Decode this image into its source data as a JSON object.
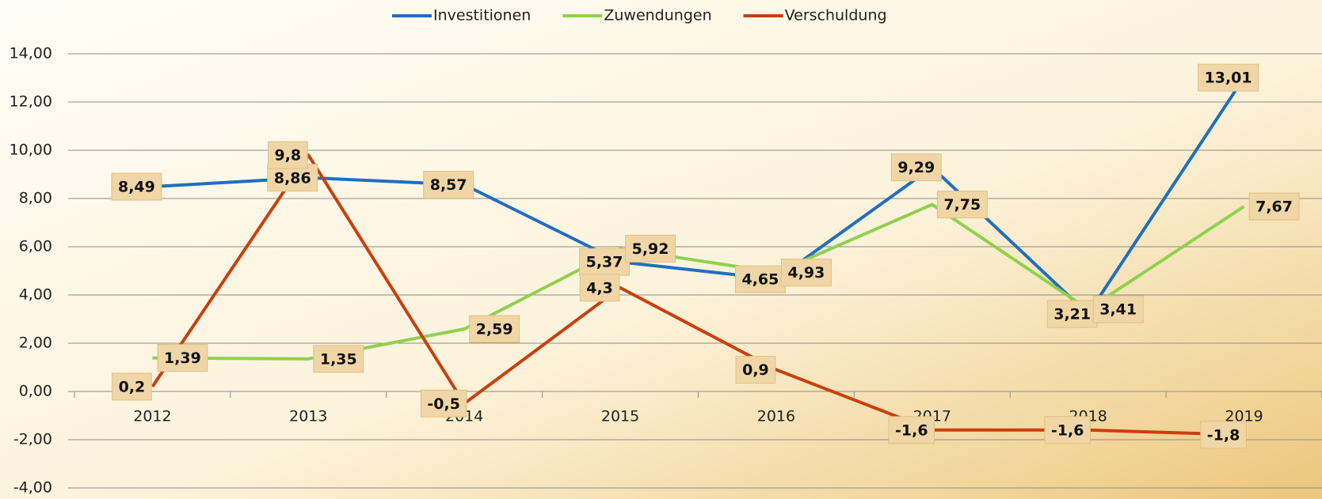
{
  "chart_data": {
    "type": "line",
    "categories": [
      "2012",
      "2013",
      "2014",
      "2015",
      "2016",
      "2017",
      "2018",
      "2019"
    ],
    "series": [
      {
        "name": "Investitionen",
        "color": "#1f6fbf",
        "values": [
          8.49,
          8.86,
          8.57,
          5.37,
          4.65,
          9.29,
          3.21,
          13.01
        ],
        "value_labels": [
          "8,49",
          "8,86",
          "8,57",
          "5,37",
          "4,65",
          "9,29",
          "3,21",
          "13,01"
        ]
      },
      {
        "name": "Zuwendungen",
        "color": "#8fd14f",
        "values": [
          1.39,
          1.35,
          2.59,
          5.92,
          4.93,
          7.75,
          3.41,
          7.67
        ],
        "value_labels": [
          "1,39",
          "1,35",
          "2,59",
          "5,92",
          "4,93",
          "7,75",
          "3,41",
          "7,67"
        ]
      },
      {
        "name": "Verschuldung",
        "color": "#c8400e",
        "values": [
          0.2,
          9.8,
          -0.5,
          4.3,
          0.9,
          -1.6,
          -1.6,
          -1.8
        ],
        "value_labels": [
          "0,2",
          "9,8",
          "-0,5",
          "4,3",
          "0,9",
          "-1,6",
          "-1,6",
          "-1,8"
        ]
      }
    ],
    "ylim": [
      -4,
      14
    ],
    "yticks": [
      {
        "value": -4,
        "label": "-4,00"
      },
      {
        "value": -2,
        "label": "-2,00"
      },
      {
        "value": 0,
        "label": "0,00"
      },
      {
        "value": 2,
        "label": "2,00"
      },
      {
        "value": 4,
        "label": "4,00"
      },
      {
        "value": 6,
        "label": "6,00"
      },
      {
        "value": 8,
        "label": "8,00"
      },
      {
        "value": 10,
        "label": "10,00"
      },
      {
        "value": 12,
        "label": "12,00"
      },
      {
        "value": 14,
        "label": "14,00"
      }
    ],
    "grid": true,
    "legend": "top"
  }
}
